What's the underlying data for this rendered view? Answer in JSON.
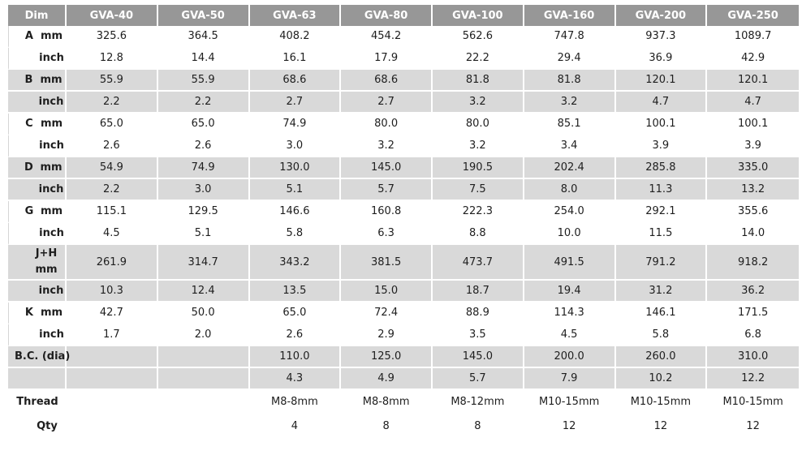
{
  "header": [
    "Dim",
    "GVA-40",
    "GVA-50",
    "GVA-63",
    "GVA-80",
    "GVA-100",
    "GVA-160",
    "GVA-200",
    "GVA-250"
  ],
  "rows": [
    {
      "letter": "A",
      "unit": "mm",
      "values": [
        "325.6",
        "364.5",
        "408.2",
        "454.2",
        "562.6",
        "747.8",
        "937.3",
        "1089.7"
      ]
    },
    {
      "letter": "",
      "unit": "inch",
      "values": [
        "12.8",
        "14.4",
        "16.1",
        "17.9",
        "22.2",
        "29.4",
        "36.9",
        "42.9"
      ]
    },
    {
      "letter": "B",
      "unit": "mm",
      "values": [
        "55.9",
        "55.9",
        "68.6",
        "68.6",
        "81.8",
        "81.8",
        "120.1",
        "120.1"
      ]
    },
    {
      "letter": "",
      "unit": "inch",
      "values": [
        "2.2",
        "2.2",
        "2.7",
        "2.7",
        "3.2",
        "3.2",
        "4.7",
        "4.7"
      ]
    },
    {
      "letter": "C",
      "unit": "mm",
      "values": [
        "65.0",
        "65.0",
        "74.9",
        "80.0",
        "80.0",
        "85.1",
        "100.1",
        "100.1"
      ]
    },
    {
      "letter": "",
      "unit": "inch",
      "values": [
        "2.6",
        "2.6",
        "3.0",
        "3.2",
        "3.2",
        "3.4",
        "3.9",
        "3.9"
      ]
    },
    {
      "letter": "D",
      "unit": "mm",
      "values": [
        "54.9",
        "74.9",
        "130.0",
        "145.0",
        "190.5",
        "202.4",
        "285.8",
        "335.0"
      ]
    },
    {
      "letter": "",
      "unit": "inch",
      "values": [
        "2.2",
        "3.0",
        "5.1",
        "5.7",
        "7.5",
        "8.0",
        "11.3",
        "13.2"
      ]
    },
    {
      "letter": "G",
      "unit": "mm",
      "values": [
        "115.1",
        "129.5",
        "146.6",
        "160.8",
        "222.3",
        "254.0",
        "292.1",
        "355.6"
      ]
    },
    {
      "letter": "",
      "unit": "inch",
      "values": [
        "4.5",
        "5.1",
        "5.8",
        "6.3",
        "8.8",
        "10.0",
        "11.5",
        "14.0"
      ]
    },
    {
      "letter": "J+H",
      "unit": "mm",
      "values": [
        "261.9",
        "314.7",
        "343.2",
        "381.5",
        "473.7",
        "491.5",
        "791.2",
        "918.2"
      ]
    },
    {
      "letter": "",
      "unit": "inch",
      "values": [
        "10.3",
        "12.4",
        "13.5",
        "15.0",
        "18.7",
        "19.4",
        "31.2",
        "36.2"
      ]
    },
    {
      "letter": "K",
      "unit": "mm",
      "values": [
        "42.7",
        "50.0",
        "65.0",
        "72.4",
        "88.9",
        "114.3",
        "146.1",
        "171.5"
      ]
    },
    {
      "letter": "",
      "unit": "inch",
      "values": [
        "1.7",
        "2.0",
        "2.6",
        "2.9",
        "3.5",
        "4.5",
        "5.8",
        "6.8"
      ]
    },
    {
      "letter": "B.C. (dia)",
      "unit": "",
      "values": [
        "",
        "",
        "110.0",
        "125.0",
        "145.0",
        "200.0",
        "260.0",
        "310.0"
      ]
    },
    {
      "letter": "",
      "unit": "",
      "values": [
        "",
        "",
        "4.3",
        "4.9",
        "5.7",
        "7.9",
        "10.2",
        "12.2"
      ]
    }
  ],
  "footer": [
    {
      "label": "Thread",
      "values": [
        "",
        "",
        "M8-8mm",
        "M8-8mm",
        "M8-12mm",
        "M10-15mm",
        "M10-15mm",
        "M10-15mm"
      ]
    },
    {
      "label": "Qty",
      "values": [
        "",
        "",
        "4",
        "8",
        "8",
        "12",
        "12",
        "12"
      ]
    }
  ],
  "colors": {
    "header_bg": "#979797",
    "header_text": "#ffffff",
    "band_gray": "#d9d9d9",
    "band_white": "#ffffff",
    "border": "#d6d6d6"
  }
}
